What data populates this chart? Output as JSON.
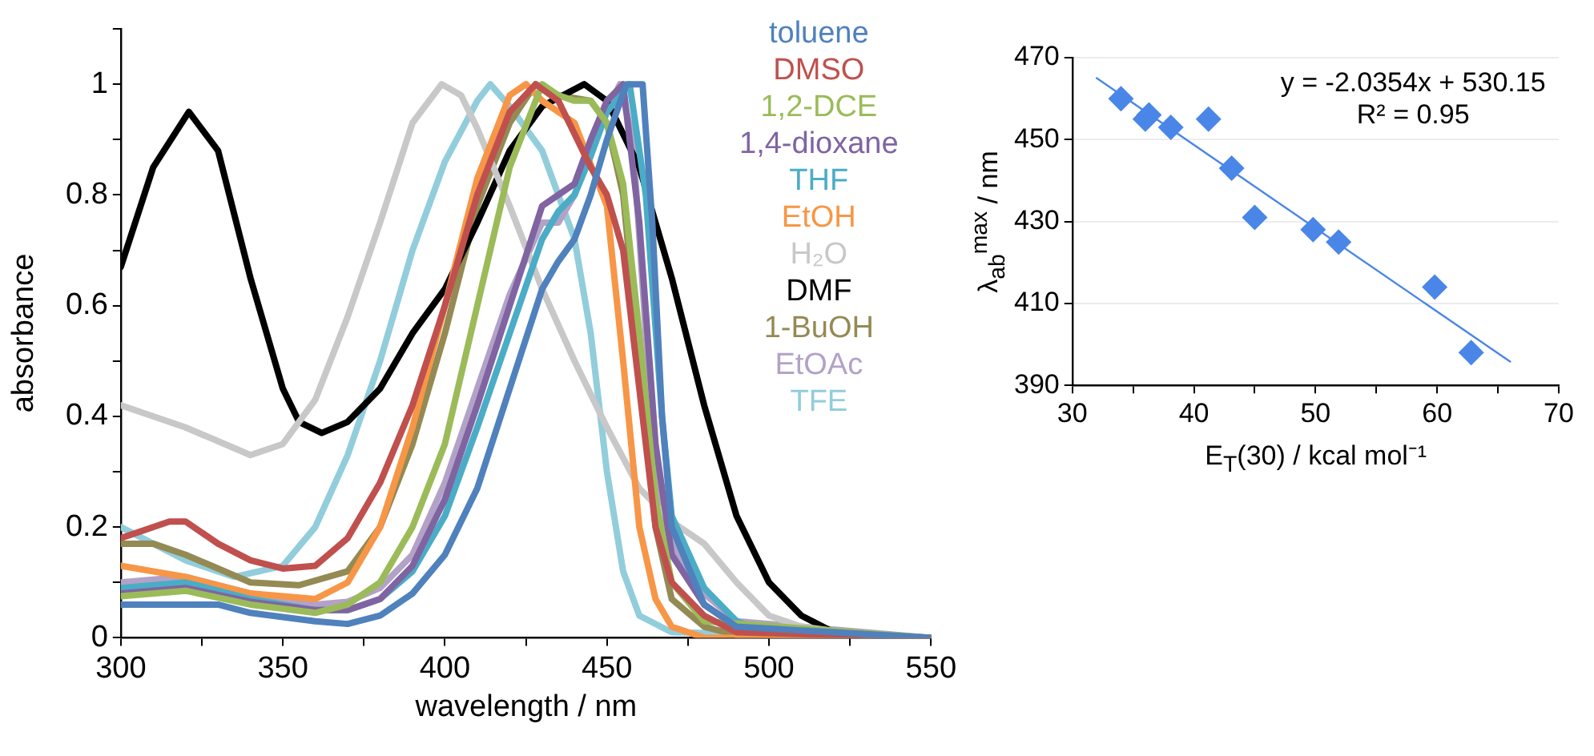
{
  "chart_data": [
    {
      "type": "line",
      "xlabel": "wavelength / nm",
      "ylabel": "absorbance",
      "xlim": [
        300,
        550
      ],
      "ylim": [
        0,
        1.1
      ],
      "xticks": [
        300,
        {
          "value": 325,
          "label": null
        },
        350,
        {
          "value": 375,
          "label": null
        },
        400,
        {
          "value": 425,
          "label": null
        },
        450,
        {
          "value": 475,
          "label": null
        },
        500,
        {
          "value": 525,
          "label": null
        },
        550
      ],
      "yticks": [
        0,
        {
          "value": 0.1,
          "label": null
        },
        0.2,
        {
          "value": 0.3,
          "label": null
        },
        0.4,
        {
          "value": 0.5,
          "label": null
        },
        0.6,
        {
          "value": 0.7,
          "label": null
        },
        0.8,
        {
          "value": 0.9,
          "label": null
        },
        1,
        {
          "value": 1.1,
          "label": null
        }
      ],
      "legend": "top right",
      "marker": "none",
      "grid": false,
      "series": [
        {
          "name": "toluene",
          "color": "#4f81bd",
          "x": [
            300,
            320,
            330,
            340,
            360,
            370,
            380,
            390,
            400,
            410,
            420,
            430,
            435,
            440,
            445,
            450,
            456,
            461,
            464,
            467,
            470,
            480,
            490,
            550
          ],
          "values": [
            0.06,
            0.06,
            0.06,
            0.045,
            0.03,
            0.025,
            0.04,
            0.08,
            0.15,
            0.27,
            0.45,
            0.63,
            0.68,
            0.72,
            0.8,
            0.9,
            1.0,
            1.0,
            0.75,
            0.4,
            0.2,
            0.06,
            0.02,
            0
          ]
        },
        {
          "name": "DMSO",
          "color": "#c0504d",
          "x": [
            300,
            315,
            320,
            330,
            340,
            350,
            360,
            370,
            380,
            390,
            400,
            410,
            420,
            428,
            435,
            445,
            450,
            455,
            460,
            465,
            470,
            480,
            490,
            550
          ],
          "values": [
            0.18,
            0.21,
            0.21,
            0.17,
            0.14,
            0.125,
            0.13,
            0.18,
            0.28,
            0.42,
            0.6,
            0.8,
            0.95,
            1.0,
            0.97,
            0.85,
            0.8,
            0.7,
            0.45,
            0.2,
            0.1,
            0.04,
            0.01,
            0
          ]
        },
        {
          "name": "1,2-DCE",
          "color": "#9bbb59",
          "x": [
            300,
            320,
            340,
            360,
            370,
            380,
            390,
            400,
            410,
            420,
            430,
            435,
            440,
            445,
            450,
            455,
            460,
            465,
            470,
            480,
            550
          ],
          "values": [
            0.075,
            0.085,
            0.06,
            0.045,
            0.06,
            0.1,
            0.2,
            0.35,
            0.6,
            0.85,
            1.0,
            0.98,
            0.97,
            0.97,
            0.93,
            0.82,
            0.55,
            0.25,
            0.1,
            0.03,
            0
          ]
        },
        {
          "name": "1,4-dioxane",
          "color": "#8064a2",
          "x": [
            300,
            320,
            340,
            360,
            370,
            380,
            390,
            400,
            410,
            420,
            430,
            435,
            440,
            445,
            450,
            455,
            460,
            465,
            470,
            480,
            490,
            550
          ],
          "values": [
            0.08,
            0.09,
            0.065,
            0.05,
            0.05,
            0.07,
            0.13,
            0.25,
            0.42,
            0.6,
            0.78,
            0.8,
            0.82,
            0.9,
            0.97,
            1.0,
            0.75,
            0.35,
            0.15,
            0.06,
            0.02,
            0
          ]
        },
        {
          "name": "THF",
          "color": "#4bacc6",
          "x": [
            300,
            320,
            340,
            360,
            370,
            380,
            390,
            400,
            410,
            420,
            430,
            435,
            440,
            445,
            450,
            457,
            462,
            467,
            470,
            480,
            490,
            500,
            550
          ],
          "values": [
            0.09,
            0.1,
            0.07,
            0.05,
            0.05,
            0.07,
            0.12,
            0.22,
            0.38,
            0.55,
            0.72,
            0.77,
            0.8,
            0.87,
            0.95,
            1.0,
            0.8,
            0.4,
            0.22,
            0.09,
            0.03,
            0.01,
            0
          ]
        },
        {
          "name": "EtOH",
          "color": "#f79646",
          "x": [
            300,
            320,
            340,
            360,
            370,
            380,
            390,
            400,
            410,
            420,
            425,
            430,
            440,
            450,
            455,
            460,
            465,
            470,
            480,
            550
          ],
          "values": [
            0.13,
            0.11,
            0.08,
            0.07,
            0.1,
            0.2,
            0.38,
            0.6,
            0.83,
            0.98,
            1.0,
            0.97,
            0.93,
            0.78,
            0.5,
            0.2,
            0.07,
            0.02,
            0,
            0
          ]
        },
        {
          "name": "H₂O",
          "color": "#c8c8c8",
          "x": [
            300,
            320,
            340,
            350,
            360,
            370,
            380,
            390,
            399,
            405,
            410,
            420,
            430,
            440,
            450,
            460,
            470,
            480,
            490,
            500,
            510,
            530,
            550
          ],
          "values": [
            0.42,
            0.38,
            0.33,
            0.35,
            0.43,
            0.58,
            0.75,
            0.93,
            1.0,
            0.98,
            0.92,
            0.78,
            0.63,
            0.5,
            0.38,
            0.27,
            0.21,
            0.17,
            0.1,
            0.04,
            0.02,
            0.005,
            0
          ]
        },
        {
          "name": "DMF",
          "color": "#000000",
          "x": [
            300,
            310,
            321,
            330,
            340,
            350,
            355,
            362,
            370,
            380,
            390,
            400,
            410,
            420,
            430,
            443,
            450,
            460,
            470,
            480,
            490,
            500,
            510,
            520,
            530,
            550
          ],
          "values": [
            0.67,
            0.85,
            0.95,
            0.88,
            0.65,
            0.45,
            0.39,
            0.37,
            0.39,
            0.45,
            0.55,
            0.63,
            0.75,
            0.88,
            0.96,
            1.0,
            0.97,
            0.85,
            0.65,
            0.42,
            0.22,
            0.1,
            0.04,
            0.01,
            0,
            0
          ]
        },
        {
          "name": "1-BuOH",
          "color": "#948a54",
          "x": [
            300,
            310,
            320,
            340,
            355,
            370,
            380,
            390,
            400,
            410,
            420,
            428,
            435,
            440,
            445,
            450,
            455,
            460,
            465,
            470,
            480,
            490,
            550
          ],
          "values": [
            0.17,
            0.17,
            0.15,
            0.1,
            0.095,
            0.12,
            0.2,
            0.35,
            0.55,
            0.78,
            0.93,
            1.0,
            0.98,
            0.975,
            0.97,
            0.93,
            0.8,
            0.5,
            0.2,
            0.07,
            0.02,
            0.005,
            0
          ]
        },
        {
          "name": "EtOAc",
          "color": "#b3a2c7",
          "x": [
            300,
            320,
            340,
            360,
            370,
            380,
            390,
            400,
            410,
            420,
            430,
            435,
            440,
            445,
            450,
            454,
            458,
            462,
            466,
            470,
            480,
            490,
            550
          ],
          "values": [
            0.1,
            0.11,
            0.08,
            0.06,
            0.065,
            0.09,
            0.15,
            0.28,
            0.45,
            0.62,
            0.75,
            0.75,
            0.8,
            0.88,
            0.95,
            1.0,
            0.9,
            0.55,
            0.25,
            0.17,
            0.08,
            0.03,
            0
          ]
        },
        {
          "name": "TFE",
          "color": "#92cddc",
          "x": [
            300,
            320,
            335,
            350,
            360,
            370,
            380,
            390,
            400,
            410,
            414,
            420,
            430,
            440,
            445,
            450,
            455,
            460,
            470,
            550
          ],
          "values": [
            0.2,
            0.14,
            0.11,
            0.13,
            0.2,
            0.33,
            0.5,
            0.7,
            0.86,
            0.97,
            1.0,
            0.96,
            0.88,
            0.72,
            0.55,
            0.3,
            0.12,
            0.04,
            0.01,
            0
          ]
        }
      ]
    },
    {
      "type": "scatter",
      "xlabel": "E$_{T}$(30) / kcal mol⁻¹",
      "ylabel": "λ$_{ab}$$^{max}$ / nm",
      "xlim": [
        30,
        70
      ],
      "ylim": [
        390,
        470
      ],
      "xticks": [
        30,
        {
          "value": 35,
          "label": null
        },
        40,
        {
          "value": 45,
          "label": null
        },
        50,
        {
          "value": 55,
          "label": null
        },
        60,
        {
          "value": 65,
          "label": null
        },
        70
      ],
      "yticks": [
        390,
        410,
        430,
        450,
        470
      ],
      "grid": "y",
      "annotations": [
        "y = -2.0354x + 530.15",
        "R² = 0.95"
      ],
      "series": [
        {
          "color": "#4a86e8",
          "marker": "diamond",
          "x": [
            34,
            36,
            36.3,
            38.1,
            41.2,
            43.1,
            45,
            49.8,
            51.9,
            59.8,
            62.8
          ],
          "values": [
            460,
            455,
            456,
            453,
            455,
            443,
            431,
            428,
            425,
            414,
            398
          ]
        },
        {
          "type": "line",
          "color": "#4a86e8",
          "x": [
            32,
            66
          ],
          "values": [
            465,
            395.8
          ],
          "marker": "none"
        }
      ]
    }
  ]
}
